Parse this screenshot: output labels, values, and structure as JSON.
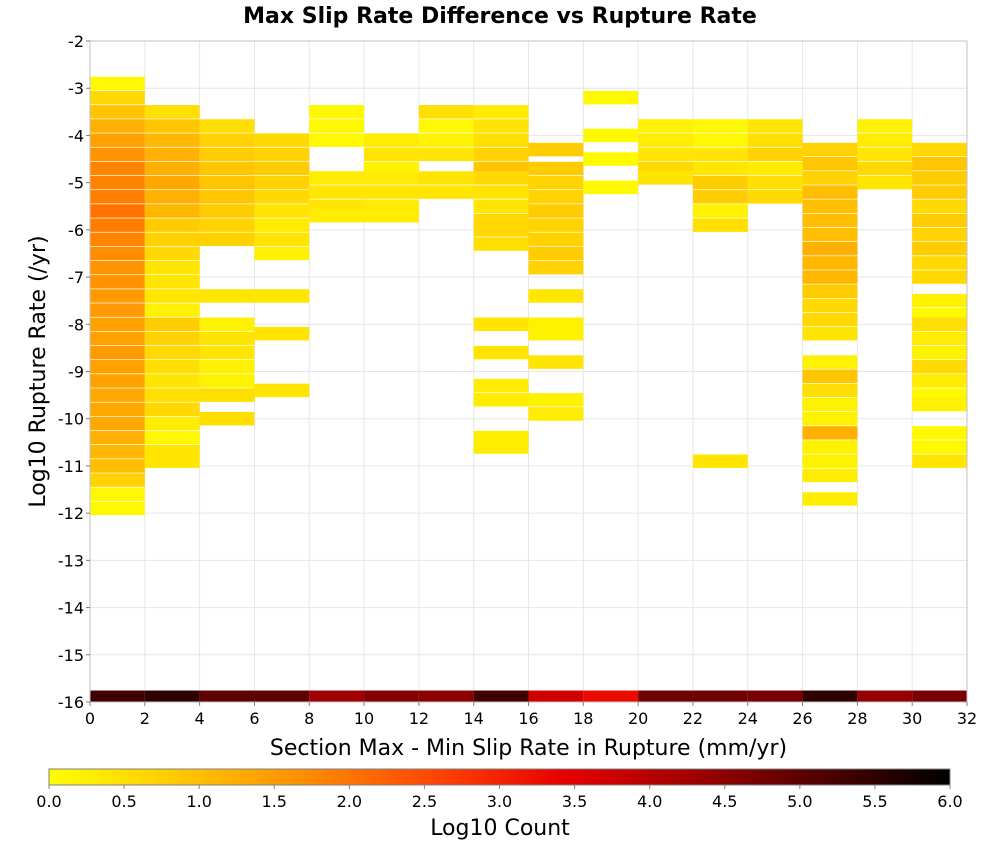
{
  "chart_data": {
    "type": "heatmap",
    "title": "Max Slip Rate Difference vs Rupture Rate",
    "xlabel": "Section Max - Min Slip Rate in Rupture (mm/yr)",
    "ylabel": "Log10 Rupture Rate (/yr)",
    "xlim": [
      0,
      32
    ],
    "ylim": [
      -16,
      -2
    ],
    "x_ticks": [
      "0",
      "2",
      "4",
      "6",
      "8",
      "10",
      "12",
      "14",
      "16",
      "18",
      "20",
      "22",
      "24",
      "26",
      "28",
      "30",
      "32"
    ],
    "y_ticks": [
      "-2",
      "-3",
      "-4",
      "-5",
      "-6",
      "-7",
      "-8",
      "-9",
      "-10",
      "-11",
      "-12",
      "-13",
      "-14",
      "-15",
      "-16"
    ],
    "x_bin_width": 2,
    "y_bin_height": 0.2857,
    "grid": true,
    "colorbar": {
      "label": "Log10 Count",
      "min": 0.0,
      "max": 6.0,
      "ticks": [
        "0.0",
        "0.5",
        "1.0",
        "1.5",
        "2.0",
        "2.5",
        "3.0",
        "3.5",
        "4.0",
        "4.5",
        "5.0",
        "5.5",
        "6.0"
      ],
      "stops": [
        "#ffff00",
        "#ffc800",
        "#ff8c00",
        "#ff4500",
        "#e60000",
        "#a00000",
        "#500000",
        "#000000"
      ]
    },
    "cells": [
      [
        0,
        -2.9,
        0.1
      ],
      [
        0,
        -3.2,
        0.6
      ],
      [
        0,
        -3.5,
        0.9
      ],
      [
        0,
        -3.8,
        1.2
      ],
      [
        0,
        -4.1,
        1.4
      ],
      [
        0,
        -4.4,
        1.6
      ],
      [
        0,
        -4.7,
        1.8
      ],
      [
        0,
        -5.0,
        1.8
      ],
      [
        0,
        -5.3,
        1.9
      ],
      [
        0,
        -5.6,
        2.0
      ],
      [
        0,
        -5.9,
        1.9
      ],
      [
        0,
        -6.2,
        1.8
      ],
      [
        0,
        -6.5,
        1.7
      ],
      [
        0,
        -6.8,
        1.6
      ],
      [
        0,
        -7.1,
        1.6
      ],
      [
        0,
        -7.4,
        1.5
      ],
      [
        0,
        -7.7,
        1.5
      ],
      [
        0,
        -8.0,
        1.4
      ],
      [
        0,
        -8.3,
        1.4
      ],
      [
        0,
        -8.6,
        1.5
      ],
      [
        0,
        -8.9,
        1.4
      ],
      [
        0,
        -9.2,
        1.4
      ],
      [
        0,
        -9.5,
        1.3
      ],
      [
        0,
        -9.8,
        1.3
      ],
      [
        0,
        -10.1,
        1.3
      ],
      [
        0,
        -10.4,
        1.2
      ],
      [
        0,
        -10.7,
        1.1
      ],
      [
        0,
        -11.0,
        1.0
      ],
      [
        0,
        -11.3,
        0.7
      ],
      [
        0,
        -11.6,
        0.1
      ],
      [
        0,
        -11.9,
        0.1
      ],
      [
        2,
        -3.5,
        0.5
      ],
      [
        2,
        -3.8,
        0.9
      ],
      [
        2,
        -4.1,
        1.1
      ],
      [
        2,
        -4.4,
        1.2
      ],
      [
        2,
        -4.7,
        1.2
      ],
      [
        2,
        -5.0,
        1.3
      ],
      [
        2,
        -5.3,
        1.2
      ],
      [
        2,
        -5.6,
        1.1
      ],
      [
        2,
        -5.9,
        0.8
      ],
      [
        2,
        -6.2,
        0.7
      ],
      [
        2,
        -6.5,
        0.6
      ],
      [
        2,
        -6.8,
        0.4
      ],
      [
        2,
        -7.1,
        0.4
      ],
      [
        2,
        -7.4,
        0.4
      ],
      [
        2,
        -7.7,
        0.2
      ],
      [
        2,
        -8.0,
        0.8
      ],
      [
        2,
        -8.3,
        0.7
      ],
      [
        2,
        -8.6,
        0.6
      ],
      [
        2,
        -8.9,
        0.5
      ],
      [
        2,
        -9.2,
        0.4
      ],
      [
        2,
        -9.5,
        0.5
      ],
      [
        2,
        -9.8,
        0.6
      ],
      [
        2,
        -10.1,
        0.3
      ],
      [
        2,
        -10.4,
        0.1
      ],
      [
        2,
        -10.7,
        0.4
      ],
      [
        2,
        -10.9,
        0.4
      ],
      [
        4,
        -3.8,
        0.5
      ],
      [
        4,
        -4.1,
        0.7
      ],
      [
        4,
        -4.4,
        0.8
      ],
      [
        4,
        -4.7,
        0.9
      ],
      [
        4,
        -5.0,
        0.9
      ],
      [
        4,
        -5.3,
        0.9
      ],
      [
        4,
        -5.6,
        0.8
      ],
      [
        4,
        -5.9,
        0.7
      ],
      [
        4,
        -6.2,
        0.7
      ],
      [
        4,
        -7.4,
        0.4
      ],
      [
        4,
        -8.0,
        0.2
      ],
      [
        4,
        -8.3,
        0.4
      ],
      [
        4,
        -8.6,
        0.4
      ],
      [
        4,
        -8.9,
        0.2
      ],
      [
        4,
        -9.2,
        0.2
      ],
      [
        4,
        -9.5,
        0.5
      ],
      [
        4,
        -10.0,
        0.5
      ],
      [
        6,
        -4.1,
        0.6
      ],
      [
        6,
        -4.4,
        0.7
      ],
      [
        6,
        -4.7,
        0.8
      ],
      [
        6,
        -5.0,
        0.7
      ],
      [
        6,
        -5.3,
        0.6
      ],
      [
        6,
        -5.6,
        0.4
      ],
      [
        6,
        -5.9,
        0.3
      ],
      [
        6,
        -6.2,
        0.4
      ],
      [
        6,
        -6.5,
        0.2
      ],
      [
        6,
        -7.4,
        0.4
      ],
      [
        6,
        -8.2,
        0.4
      ],
      [
        6,
        -9.4,
        0.4
      ],
      [
        8,
        -3.5,
        0.1
      ],
      [
        8,
        -3.8,
        0.1
      ],
      [
        8,
        -4.1,
        0.1
      ],
      [
        8,
        -4.9,
        0.3
      ],
      [
        8,
        -5.2,
        0.4
      ],
      [
        8,
        -5.5,
        0.4
      ],
      [
        8,
        -5.7,
        0.3
      ],
      [
        10,
        -4.1,
        0.3
      ],
      [
        10,
        -4.4,
        0.4
      ],
      [
        10,
        -4.7,
        0.2
      ],
      [
        10,
        -4.9,
        0.3
      ],
      [
        10,
        -5.2,
        0.4
      ],
      [
        10,
        -5.5,
        0.3
      ],
      [
        10,
        -5.7,
        0.3
      ],
      [
        12,
        -3.5,
        0.5
      ],
      [
        12,
        -3.8,
        0.1
      ],
      [
        12,
        -4.1,
        0.2
      ],
      [
        12,
        -4.4,
        0.4
      ],
      [
        12,
        -4.9,
        0.4
      ],
      [
        12,
        -5.2,
        0.4
      ],
      [
        14,
        -3.5,
        0.3
      ],
      [
        14,
        -3.8,
        0.4
      ],
      [
        14,
        -4.1,
        0.5
      ],
      [
        14,
        -4.4,
        0.7
      ],
      [
        14,
        -4.7,
        0.9
      ],
      [
        14,
        -4.9,
        0.6
      ],
      [
        14,
        -5.2,
        0.4
      ],
      [
        14,
        -5.5,
        0.4
      ],
      [
        14,
        -5.8,
        0.6
      ],
      [
        14,
        -6.0,
        0.6
      ],
      [
        14,
        -6.3,
        0.5
      ],
      [
        14,
        -8.0,
        0.4
      ],
      [
        14,
        -8.6,
        0.4
      ],
      [
        14,
        -9.3,
        0.3
      ],
      [
        14,
        -9.6,
        0.3
      ],
      [
        14,
        -10.4,
        0.3
      ],
      [
        14,
        -10.6,
        0.3
      ],
      [
        16,
        -4.3,
        0.8
      ],
      [
        16,
        -4.7,
        0.8
      ],
      [
        16,
        -5.0,
        0.7
      ],
      [
        16,
        -5.3,
        0.7
      ],
      [
        16,
        -5.6,
        0.8
      ],
      [
        16,
        -5.9,
        0.7
      ],
      [
        16,
        -6.2,
        0.7
      ],
      [
        16,
        -6.5,
        0.8
      ],
      [
        16,
        -6.8,
        0.7
      ],
      [
        16,
        -7.4,
        0.4
      ],
      [
        16,
        -8.0,
        0.2
      ],
      [
        16,
        -8.2,
        0.2
      ],
      [
        16,
        -8.8,
        0.4
      ],
      [
        16,
        -9.6,
        0.2
      ],
      [
        16,
        -9.9,
        0.3
      ],
      [
        18,
        -3.2,
        0.1
      ],
      [
        18,
        -4.0,
        0.1
      ],
      [
        18,
        -4.5,
        0.1
      ],
      [
        18,
        -5.1,
        0.1
      ],
      [
        20,
        -3.8,
        0.2
      ],
      [
        20,
        -4.1,
        0.3
      ],
      [
        20,
        -4.4,
        0.4
      ],
      [
        20,
        -4.7,
        0.6
      ],
      [
        20,
        -4.9,
        0.4
      ],
      [
        22,
        -3.8,
        0.1
      ],
      [
        22,
        -4.1,
        0.1
      ],
      [
        22,
        -4.4,
        0.4
      ],
      [
        22,
        -4.7,
        0.4
      ],
      [
        22,
        -5.0,
        0.8
      ],
      [
        22,
        -5.3,
        0.8
      ],
      [
        22,
        -5.6,
        0.2
      ],
      [
        22,
        -5.9,
        0.5
      ],
      [
        22,
        -10.9,
        0.4
      ],
      [
        24,
        -3.8,
        0.4
      ],
      [
        24,
        -4.1,
        0.5
      ],
      [
        24,
        -4.4,
        0.7
      ],
      [
        24,
        -4.7,
        0.3
      ],
      [
        24,
        -5.0,
        0.5
      ],
      [
        24,
        -5.3,
        0.6
      ],
      [
        26,
        -4.3,
        0.7
      ],
      [
        26,
        -4.6,
        0.9
      ],
      [
        26,
        -4.9,
        0.7
      ],
      [
        26,
        -5.2,
        1.0
      ],
      [
        26,
        -5.5,
        1.0
      ],
      [
        26,
        -5.8,
        1.0
      ],
      [
        26,
        -6.1,
        1.0
      ],
      [
        26,
        -6.4,
        1.2
      ],
      [
        26,
        -6.7,
        1.1
      ],
      [
        26,
        -7.0,
        1.1
      ],
      [
        26,
        -7.3,
        0.8
      ],
      [
        26,
        -7.6,
        0.6
      ],
      [
        26,
        -7.9,
        0.6
      ],
      [
        26,
        -8.2,
        0.4
      ],
      [
        26,
        -8.8,
        0.2
      ],
      [
        26,
        -9.1,
        0.9
      ],
      [
        26,
        -9.4,
        0.5
      ],
      [
        26,
        -9.7,
        0.2
      ],
      [
        26,
        -10.0,
        0.2
      ],
      [
        26,
        -10.3,
        1.2
      ],
      [
        26,
        -10.6,
        0.2
      ],
      [
        26,
        -10.9,
        0.2
      ],
      [
        26,
        -11.2,
        0.3
      ],
      [
        26,
        -11.7,
        0.3
      ],
      [
        28,
        -3.8,
        0.2
      ],
      [
        28,
        -4.1,
        0.3
      ],
      [
        28,
        -4.4,
        0.4
      ],
      [
        28,
        -4.7,
        0.6
      ],
      [
        28,
        -5.0,
        0.4
      ],
      [
        30,
        -4.3,
        0.6
      ],
      [
        30,
        -4.6,
        0.9
      ],
      [
        30,
        -4.9,
        0.8
      ],
      [
        30,
        -5.2,
        0.8
      ],
      [
        30,
        -5.5,
        0.6
      ],
      [
        30,
        -5.8,
        0.8
      ],
      [
        30,
        -6.1,
        0.7
      ],
      [
        30,
        -6.4,
        0.8
      ],
      [
        30,
        -6.7,
        0.6
      ],
      [
        30,
        -7.0,
        0.6
      ],
      [
        30,
        -7.5,
        0.2
      ],
      [
        30,
        -7.8,
        0.1
      ],
      [
        30,
        -8.0,
        0.5
      ],
      [
        30,
        -8.3,
        0.3
      ],
      [
        30,
        -8.6,
        0.2
      ],
      [
        30,
        -8.9,
        0.6
      ],
      [
        30,
        -9.2,
        0.3
      ],
      [
        30,
        -9.5,
        0.1
      ],
      [
        30,
        -9.7,
        0.2
      ],
      [
        30,
        -10.3,
        0.1
      ],
      [
        30,
        -10.6,
        0.1
      ],
      [
        30,
        -10.9,
        0.4
      ],
      [
        0,
        -15.9,
        5.3
      ],
      [
        2,
        -15.9,
        5.5
      ],
      [
        4,
        -15.9,
        5.0
      ],
      [
        6,
        -15.9,
        5.0
      ],
      [
        8,
        -15.9,
        4.3
      ],
      [
        10,
        -15.9,
        4.6
      ],
      [
        12,
        -15.9,
        4.5
      ],
      [
        14,
        -15.9,
        5.3
      ],
      [
        16,
        -15.9,
        3.7
      ],
      [
        18,
        -15.9,
        3.3
      ],
      [
        20,
        -15.9,
        4.8
      ],
      [
        22,
        -15.9,
        4.8
      ],
      [
        24,
        -15.9,
        4.7
      ],
      [
        26,
        -15.9,
        5.5
      ],
      [
        28,
        -15.9,
        4.4
      ],
      [
        30,
        -15.9,
        4.7
      ]
    ]
  }
}
